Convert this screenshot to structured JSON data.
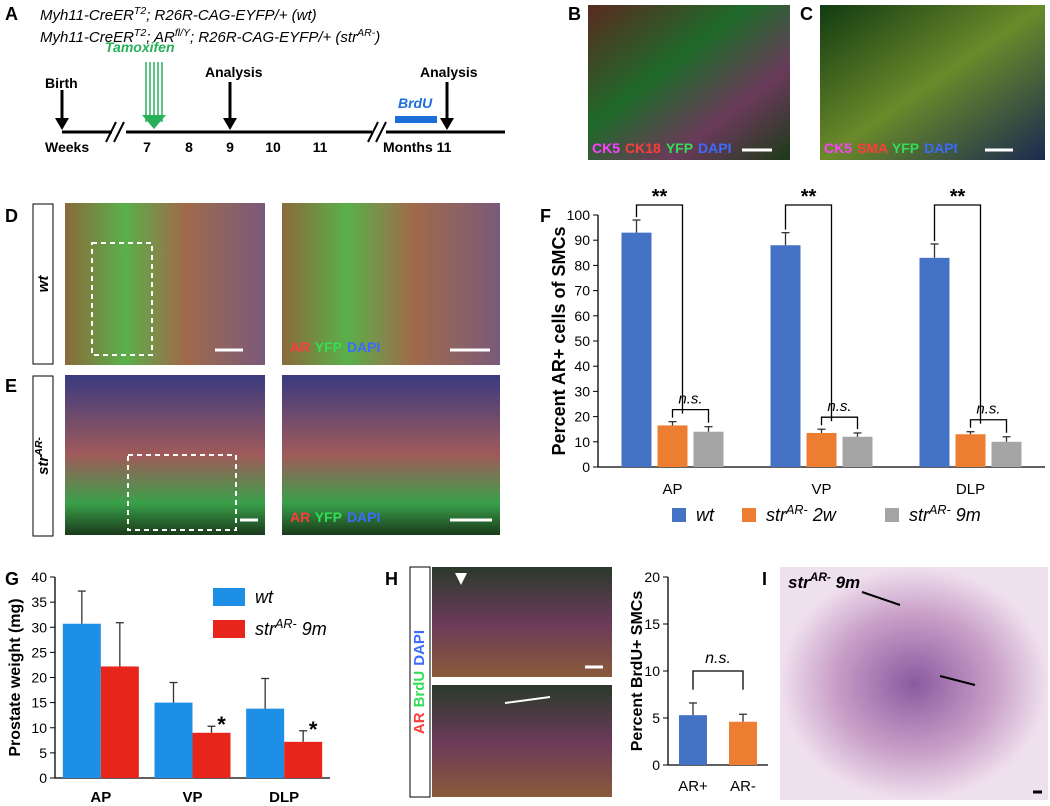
{
  "panels": {
    "A": {
      "letter": "A",
      "genotype_1": [
        "Myh11-CreER",
        "T2",
        "; R26R-CAG-EYFP/+ (wt)"
      ],
      "genotype_2": [
        "Myh11-CreER",
        "T2",
        "; AR",
        "fl/Y",
        "; R26R-CAG-EYFP/+ (str",
        "AR-",
        ")"
      ],
      "birth": "Birth",
      "tamoxifen": "Tamoxifen",
      "analysis_1": "Analysis",
      "analysis_2": "Analysis",
      "brdu": "BrdU",
      "weeks": "Weeks",
      "week_ticks": [
        "7",
        "8",
        "9",
        "10",
        "11"
      ],
      "months": "Months 11"
    },
    "B": {
      "letter": "B",
      "channels": [
        "CK5",
        "CK18",
        "YFP",
        "DAPI"
      ],
      "channel_colors": [
        "#ff40ff",
        "#ff3b3b",
        "#33dd55",
        "#3b6bff"
      ]
    },
    "C": {
      "letter": "C",
      "channels": [
        "CK5",
        "SMA",
        "YFP",
        "DAPI"
      ],
      "channel_colors": [
        "#ff40ff",
        "#ff3b3b",
        "#33dd55",
        "#3b6bff"
      ]
    },
    "D": {
      "letter": "D",
      "genotype": "wt",
      "channels": [
        "AR",
        "YFP",
        "DAPI"
      ],
      "channel_colors": [
        "#ff3b3b",
        "#33dd55",
        "#3b6bff"
      ]
    },
    "E": {
      "letter": "E",
      "genotype": [
        "str",
        "AR-"
      ],
      "channels": [
        "AR",
        "YFP",
        "DAPI"
      ],
      "channel_colors": [
        "#ff3b3b",
        "#33dd55",
        "#3b6bff"
      ]
    },
    "F": {
      "letter": "F"
    },
    "G": {
      "letter": "G"
    },
    "H": {
      "letter": "H",
      "channels": [
        "AR",
        "BrdU",
        "DAPI"
      ],
      "channel_colors": [
        "#ff3b3b",
        "#33dd55",
        "#3b6bff"
      ]
    },
    "I": {
      "letter": "I",
      "label": [
        "str",
        "AR-",
        " 9m"
      ]
    }
  },
  "chart_data": [
    {
      "type": "bar",
      "y_label": "Percent AR+ cells of SMCs",
      "categories": [
        "AP",
        "VP",
        "DLP"
      ],
      "series": [
        {
          "name": "wt",
          "color": "#4472c4",
          "values": [
            93,
            88,
            83
          ],
          "errors": [
            5,
            5,
            5.5
          ]
        },
        {
          "name": [
            "str",
            "AR-",
            " 2w"
          ],
          "color": "#ed7d31",
          "values": [
            16.5,
            13.5,
            13
          ],
          "errors": [
            1.5,
            1.5,
            1
          ]
        },
        {
          "name": [
            "str",
            "AR-",
            " 9m"
          ],
          "color": "#a5a5a5",
          "values": [
            14,
            12,
            10
          ],
          "errors": [
            2,
            1.5,
            2
          ]
        }
      ],
      "ylim": [
        0,
        100
      ],
      "yticks": [
        0,
        10,
        20,
        30,
        40,
        50,
        60,
        70,
        80,
        90,
        100
      ],
      "legend": "bottom",
      "annotations": [
        "**",
        "**",
        "**",
        "n.s.",
        "n.s.",
        "n.s."
      ]
    },
    {
      "type": "bar",
      "y_label": "Prostate weight (mg)",
      "categories": [
        "AP",
        "VP",
        "DLP"
      ],
      "series": [
        {
          "name": "wt",
          "color": "#1e8fe6",
          "values": [
            30.7,
            15,
            13.8
          ],
          "errors": [
            6.5,
            4,
            6
          ]
        },
        {
          "name": [
            "str",
            "AR-",
            " 9m"
          ],
          "color": "#e8251b",
          "values": [
            22.2,
            9,
            7.2
          ],
          "errors": [
            8.7,
            1.3,
            2.2
          ]
        }
      ],
      "ylim": [
        0,
        40
      ],
      "yticks": [
        0,
        5,
        10,
        15,
        20,
        25,
        30,
        35,
        40
      ],
      "legend": "upper right",
      "annotations": [
        "*",
        "*"
      ]
    },
    {
      "type": "bar",
      "y_label": "Percent BrdU+ SMCs",
      "categories": [
        "AR+",
        "AR-"
      ],
      "values": [
        5.3,
        4.6
      ],
      "errors": [
        1.3,
        0.8
      ],
      "colors": [
        "#4472c4",
        "#ed7d31"
      ],
      "ylim": [
        0,
        20
      ],
      "yticks": [
        0,
        5,
        10,
        15,
        20
      ],
      "annotations": [
        "n.s."
      ]
    }
  ]
}
